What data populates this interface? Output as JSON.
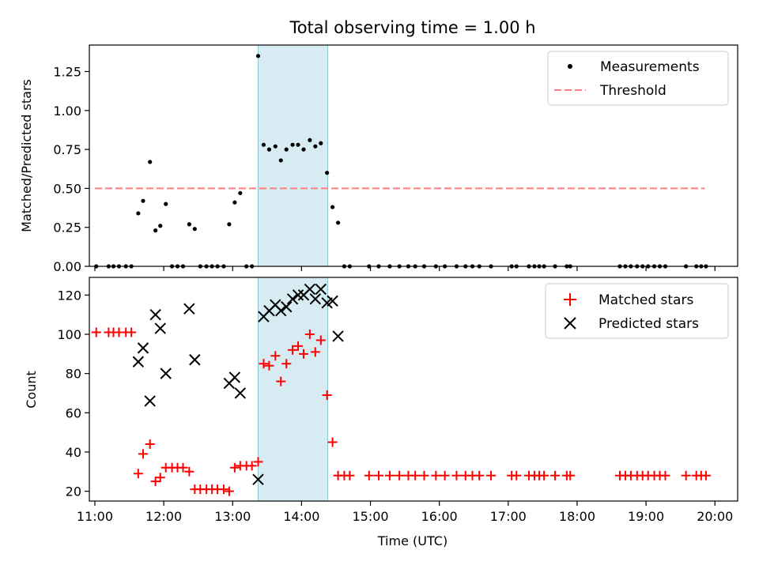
{
  "figure": {
    "title": "Total observing time = 1.00 h"
  },
  "chart_data": [
    {
      "type": "scatter",
      "ylabel": "Matched/Predicted stars",
      "xlim": [
        10.92,
        20.33
      ],
      "ylim": [
        0,
        1.42
      ],
      "yticks": [
        0.0,
        0.25,
        0.5,
        0.75,
        1.0,
        1.25
      ],
      "ytick_labels": [
        "0.00",
        "0.25",
        "0.50",
        "0.75",
        "1.00",
        "1.25"
      ],
      "shaded_interval": [
        13.37,
        14.38
      ],
      "shade_color": "#add8e6",
      "threshold": {
        "name": "Threshold",
        "y": 0.5,
        "x_range": [
          11.0,
          19.85
        ],
        "color": "#ff7f7f"
      },
      "series": [
        {
          "name": "Measurements",
          "color": "#000000",
          "x": [
            11.02,
            11.2,
            11.27,
            11.35,
            11.45,
            11.53,
            11.63,
            11.7,
            11.8,
            11.88,
            11.95,
            12.03,
            12.12,
            12.2,
            12.28,
            12.37,
            12.45,
            12.53,
            12.62,
            12.7,
            12.78,
            12.87,
            12.95,
            13.03,
            13.11,
            13.2,
            13.28,
            13.37,
            13.45,
            13.53,
            13.62,
            13.7,
            13.78,
            13.87,
            13.95,
            14.03,
            14.12,
            14.2,
            14.28,
            14.37,
            14.45,
            14.53,
            14.62,
            14.7,
            14.98,
            15.12,
            15.28,
            15.42,
            15.55,
            15.65,
            15.78,
            15.95,
            16.08,
            16.25,
            16.38,
            16.48,
            16.58,
            16.75,
            17.05,
            17.12,
            17.3,
            17.38,
            17.45,
            17.52,
            17.68,
            17.85,
            17.9,
            18.62,
            18.7,
            18.78,
            18.87,
            18.95,
            19.03,
            19.12,
            19.2,
            19.28,
            19.58,
            19.73,
            19.8,
            19.87
          ],
          "y": [
            0,
            0,
            0,
            0,
            0,
            0,
            0.34,
            0.42,
            0.67,
            0.23,
            0.26,
            0.4,
            0,
            0,
            0,
            0.27,
            0.24,
            0,
            0,
            0,
            0,
            0,
            0.27,
            0.41,
            0.47,
            0,
            0,
            1.35,
            0.78,
            0.75,
            0.77,
            0.68,
            0.75,
            0.78,
            0.78,
            0.75,
            0.81,
            0.77,
            0.79,
            0.6,
            0.38,
            0.28,
            0,
            0,
            0,
            0,
            0,
            0,
            0,
            0,
            0,
            0,
            0,
            0,
            0,
            0,
            0,
            0,
            0,
            0,
            0,
            0,
            0,
            0,
            0,
            0,
            0,
            0,
            0,
            0,
            0,
            0,
            0,
            0,
            0,
            0,
            0,
            0,
            0,
            0
          ]
        }
      ],
      "legend_position": "upper right"
    },
    {
      "type": "scatter",
      "xlabel": "Time (UTC)",
      "ylabel": "Count",
      "xlim": [
        10.92,
        20.33
      ],
      "ylim": [
        15,
        129
      ],
      "yticks": [
        20,
        40,
        60,
        80,
        100,
        120
      ],
      "ytick_labels": [
        "20",
        "40",
        "60",
        "80",
        "100",
        "120"
      ],
      "xticks": [
        11,
        12,
        13,
        14,
        15,
        16,
        17,
        18,
        19,
        20
      ],
      "xtick_labels": [
        "11:00",
        "12:00",
        "13:00",
        "14:00",
        "15:00",
        "16:00",
        "17:00",
        "18:00",
        "19:00",
        "20:00"
      ],
      "shaded_interval": [
        13.37,
        14.38
      ],
      "shade_color": "#add8e6",
      "series": [
        {
          "name": "Matched stars",
          "marker": "plus",
          "color": "#ff0000",
          "x": [
            11.02,
            11.2,
            11.27,
            11.35,
            11.45,
            11.53,
            11.63,
            11.7,
            11.8,
            11.88,
            11.95,
            12.03,
            12.12,
            12.2,
            12.28,
            12.37,
            12.45,
            12.53,
            12.62,
            12.7,
            12.78,
            12.87,
            12.95,
            13.03,
            13.11,
            13.2,
            13.28,
            13.37,
            13.45,
            13.53,
            13.62,
            13.7,
            13.78,
            13.87,
            13.95,
            14.03,
            14.12,
            14.2,
            14.28,
            14.37,
            14.45,
            14.53,
            14.62,
            14.7,
            14.98,
            15.12,
            15.28,
            15.42,
            15.55,
            15.65,
            15.78,
            15.95,
            16.08,
            16.25,
            16.38,
            16.48,
            16.58,
            16.75,
            17.05,
            17.12,
            17.3,
            17.38,
            17.45,
            17.52,
            17.68,
            17.85,
            17.9,
            18.62,
            18.7,
            18.78,
            18.87,
            18.95,
            19.03,
            19.12,
            19.2,
            19.28,
            19.58,
            19.73,
            19.8,
            19.87
          ],
          "y": [
            101,
            101,
            101,
            101,
            101,
            101,
            29,
            39,
            44,
            25,
            27,
            32,
            32,
            32,
            32,
            30,
            21,
            21,
            21,
            21,
            21,
            21,
            20,
            32,
            33,
            33,
            33,
            35,
            85,
            84,
            89,
            76,
            85,
            92,
            94,
            90,
            100,
            91,
            97,
            69,
            45,
            28,
            28,
            28,
            28,
            28,
            28,
            28,
            28,
            28,
            28,
            28,
            28,
            28,
            28,
            28,
            28,
            28,
            28,
            28,
            28,
            28,
            28,
            28,
            28,
            28,
            28,
            28,
            28,
            28,
            28,
            28,
            28,
            28,
            28,
            28,
            28,
            28,
            28,
            28
          ]
        },
        {
          "name": "Predicted stars",
          "marker": "x",
          "color": "#000000",
          "x": [
            11.63,
            11.7,
            11.8,
            11.88,
            11.95,
            12.03,
            12.37,
            12.45,
            12.95,
            13.03,
            13.11,
            13.37,
            13.45,
            13.53,
            13.62,
            13.7,
            13.78,
            13.87,
            13.95,
            14.03,
            14.12,
            14.2,
            14.28,
            14.37,
            14.45,
            14.53
          ],
          "y": [
            86,
            93,
            66,
            110,
            103,
            80,
            113,
            87,
            75,
            78,
            70,
            26,
            109,
            112,
            115,
            112,
            114,
            118,
            120,
            120,
            123,
            118,
            123,
            116,
            117,
            99
          ]
        }
      ],
      "legend_position": "upper right"
    }
  ]
}
